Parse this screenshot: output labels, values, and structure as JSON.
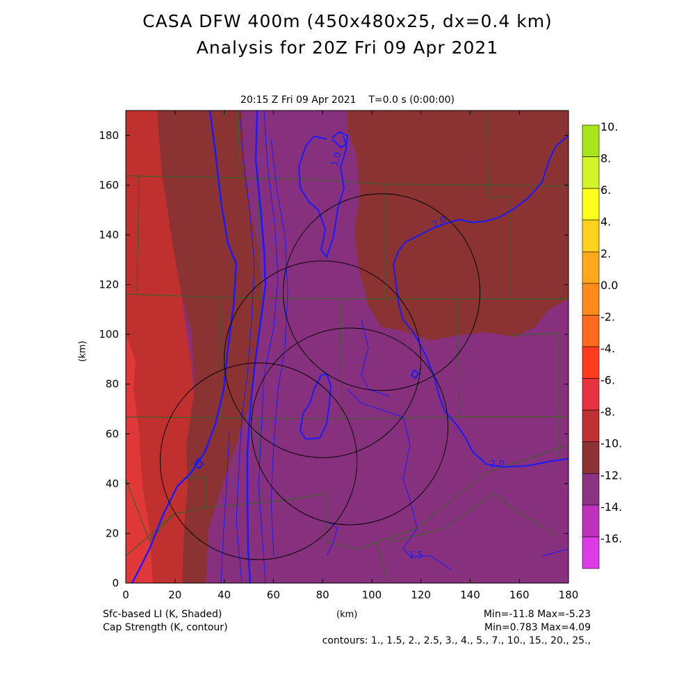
{
  "title": {
    "line1": "CASA DFW 400m (450x480x25, dx=0.4 km)",
    "line2": "Analysis for 20Z Fri 09 Apr 2021"
  },
  "subtitle": "20:15 Z Fri 09 Apr 2021    T=0.0 s (0:00:00)",
  "axes": {
    "x_unit": "(km)",
    "y_unit": "(km)",
    "x_ticks": [
      0,
      20,
      40,
      60,
      80,
      100,
      120,
      140,
      160,
      180
    ],
    "y_ticks": [
      0,
      20,
      40,
      60,
      80,
      100,
      120,
      140,
      160,
      180
    ],
    "x_range": [
      0,
      180
    ],
    "y_range": [
      0,
      190
    ]
  },
  "footer": {
    "left_line1": "Sfc-based LI (K, Shaded)",
    "left_line2": "Cap Strength (K, contour)",
    "right_line1": "Min=-11.8 Max=-5.23",
    "right_line2": "Min=0.783 Max=4.09",
    "right_line3": "contours: 1., 1.5, 2., 2.5, 3., 4., 5., 7., 10., 15., 20., 25.,"
  },
  "colorbar": {
    "labels": [
      "10.",
      "8.",
      "6.",
      "4.",
      "2.",
      "0.0",
      "-2.",
      "-4.",
      "-6.",
      "-8.",
      "-10.",
      "-12.",
      "-14.",
      "-16."
    ],
    "colors": [
      "#a6e61a",
      "#d2f52a",
      "#ffff1e",
      "#ffd21e",
      "#ffa81e",
      "#ff8a1e",
      "#ff6a1e",
      "#ff3c1e",
      "#e6323c",
      "#be3232",
      "#8c3232",
      "#8c3282",
      "#be32be",
      "#dc3ce6"
    ]
  },
  "contour_labels": [
    "1.0",
    "2.0",
    "2.0",
    "1.5"
  ],
  "radar_range_rings": [
    {
      "center_km": [
        80,
        90
      ],
      "radius_km": 40
    },
    {
      "center_km": [
        104,
        117
      ],
      "radius_km": 40
    },
    {
      "center_km": [
        91,
        63
      ],
      "radius_km": 40
    },
    {
      "center_km": [
        54,
        49
      ],
      "radius_km": 40
    }
  ]
}
